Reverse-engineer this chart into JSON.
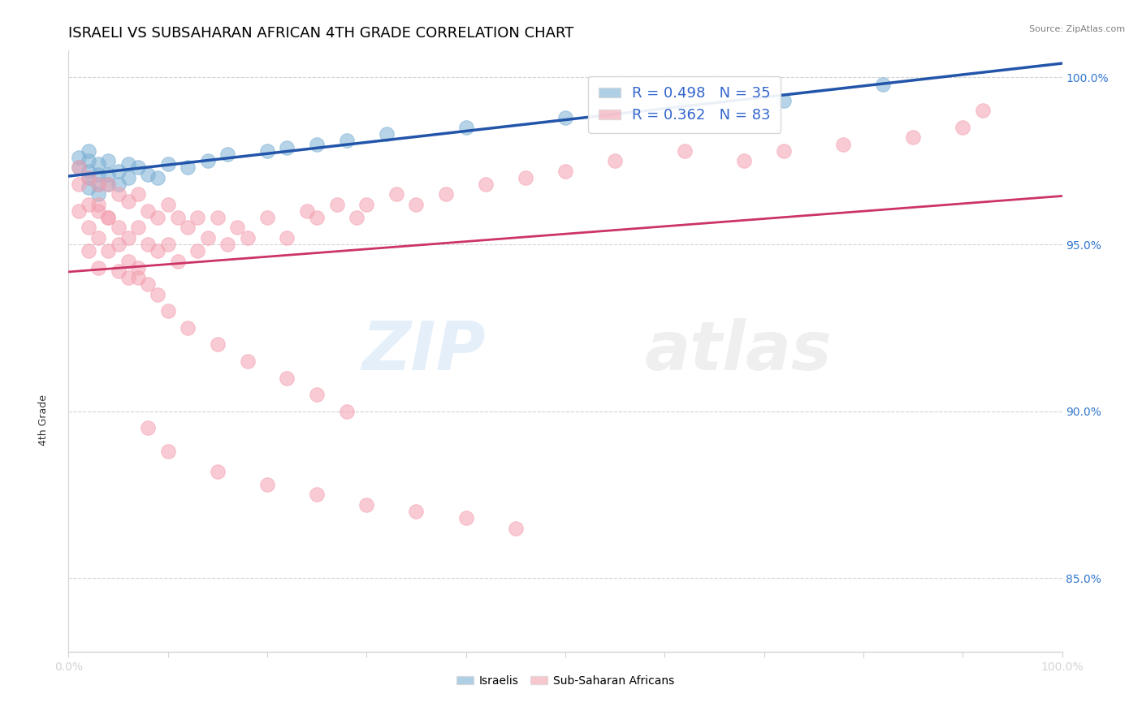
{
  "title": "ISRAELI VS SUBSAHARAN AFRICAN 4TH GRADE CORRELATION CHART",
  "source_text": "Source: ZipAtlas.com",
  "ylabel": "4th Grade",
  "xlim": [
    0.0,
    1.0
  ],
  "ylim": [
    0.828,
    1.008
  ],
  "x_ticks": [
    0.0,
    0.1,
    0.2,
    0.3,
    0.4,
    0.5,
    0.6,
    0.7,
    0.8,
    0.9,
    1.0
  ],
  "x_tick_labels": [
    "0.0%",
    "",
    "",
    "",
    "",
    "",
    "",
    "",
    "",
    "",
    "100.0%"
  ],
  "y_ticks": [
    0.85,
    0.9,
    0.95,
    1.0
  ],
  "y_tick_labels": [
    "85.0%",
    "90.0%",
    "95.0%",
    "100.0%"
  ],
  "legend_r1": "R = 0.498",
  "legend_n1": "N = 35",
  "legend_r2": "R = 0.362",
  "legend_n2": "N = 83",
  "legend_label1": "Israelis",
  "legend_label2": "Sub-Saharan Africans",
  "blue_color": "#7BAFD4",
  "pink_color": "#F4A0B0",
  "blue_line_color": "#2255AA",
  "pink_line_color": "#CC3366",
  "title_fontsize": 13,
  "axis_label_fontsize": 9,
  "tick_fontsize": 10,
  "watermark_zip": "ZIP",
  "watermark_atlas": "atlas",
  "israeli_x": [
    0.01,
    0.01,
    0.02,
    0.02,
    0.02,
    0.02,
    0.02,
    0.03,
    0.03,
    0.03,
    0.03,
    0.04,
    0.04,
    0.04,
    0.05,
    0.05,
    0.06,
    0.06,
    0.07,
    0.08,
    0.09,
    0.1,
    0.12,
    0.14,
    0.16,
    0.2,
    0.22,
    0.25,
    0.28,
    0.32,
    0.4,
    0.5,
    0.62,
    0.72,
    0.82
  ],
  "israeli_y": [
    0.973,
    0.976,
    0.972,
    0.975,
    0.978,
    0.97,
    0.967,
    0.974,
    0.971,
    0.968,
    0.965,
    0.975,
    0.971,
    0.968,
    0.972,
    0.968,
    0.974,
    0.97,
    0.973,
    0.971,
    0.97,
    0.974,
    0.973,
    0.975,
    0.977,
    0.978,
    0.979,
    0.98,
    0.981,
    0.983,
    0.985,
    0.988,
    0.991,
    0.993,
    0.998
  ],
  "subsaharan_x": [
    0.01,
    0.01,
    0.01,
    0.02,
    0.02,
    0.02,
    0.02,
    0.03,
    0.03,
    0.03,
    0.03,
    0.04,
    0.04,
    0.04,
    0.05,
    0.05,
    0.05,
    0.06,
    0.06,
    0.06,
    0.07,
    0.07,
    0.07,
    0.08,
    0.08,
    0.09,
    0.09,
    0.1,
    0.1,
    0.11,
    0.11,
    0.12,
    0.13,
    0.13,
    0.14,
    0.15,
    0.16,
    0.17,
    0.18,
    0.2,
    0.22,
    0.24,
    0.25,
    0.27,
    0.29,
    0.3,
    0.33,
    0.35,
    0.38,
    0.42,
    0.46,
    0.5,
    0.55,
    0.62,
    0.68,
    0.72,
    0.78,
    0.85,
    0.9,
    0.92,
    0.03,
    0.04,
    0.05,
    0.06,
    0.07,
    0.08,
    0.09,
    0.1,
    0.12,
    0.15,
    0.18,
    0.22,
    0.25,
    0.28,
    0.08,
    0.1,
    0.15,
    0.2,
    0.25,
    0.3,
    0.35,
    0.4,
    0.45
  ],
  "subsaharan_y": [
    0.973,
    0.968,
    0.96,
    0.97,
    0.962,
    0.955,
    0.948,
    0.968,
    0.96,
    0.952,
    0.943,
    0.968,
    0.958,
    0.948,
    0.965,
    0.955,
    0.942,
    0.963,
    0.952,
    0.94,
    0.965,
    0.955,
    0.943,
    0.96,
    0.95,
    0.958,
    0.948,
    0.962,
    0.95,
    0.958,
    0.945,
    0.955,
    0.958,
    0.948,
    0.952,
    0.958,
    0.95,
    0.955,
    0.952,
    0.958,
    0.952,
    0.96,
    0.958,
    0.962,
    0.958,
    0.962,
    0.965,
    0.962,
    0.965,
    0.968,
    0.97,
    0.972,
    0.975,
    0.978,
    0.975,
    0.978,
    0.98,
    0.982,
    0.985,
    0.99,
    0.962,
    0.958,
    0.95,
    0.945,
    0.94,
    0.938,
    0.935,
    0.93,
    0.925,
    0.92,
    0.915,
    0.91,
    0.905,
    0.9,
    0.895,
    0.888,
    0.882,
    0.878,
    0.875,
    0.872,
    0.87,
    0.868,
    0.865
  ]
}
